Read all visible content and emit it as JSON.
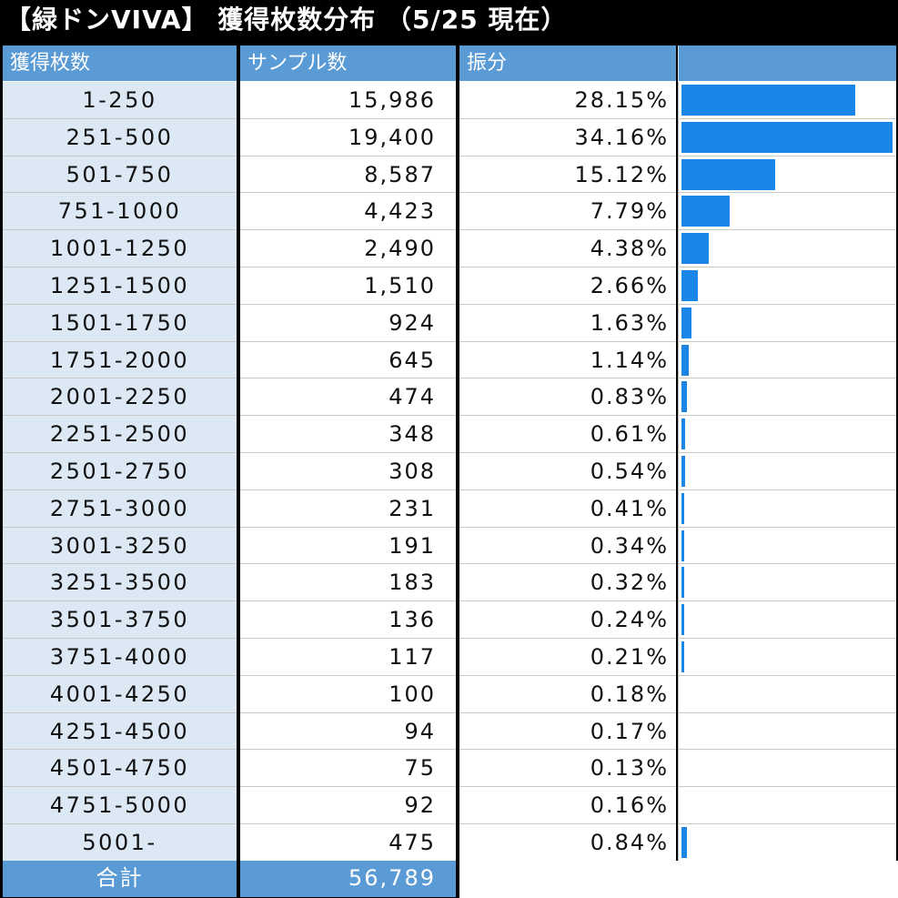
{
  "title": "【緑ドンVIVA】 獲得枚数分布 （5/25 現在）",
  "headers": {
    "range": "獲得枚数",
    "samples": "サンプル数",
    "ratio": "振分",
    "bar": ""
  },
  "rows": [
    {
      "range": "1-250",
      "samples": "15,986",
      "ratio": "28.15%",
      "pct": 28.15
    },
    {
      "range": "251-500",
      "samples": "19,400",
      "ratio": "34.16%",
      "pct": 34.16
    },
    {
      "range": "501-750",
      "samples": "8,587",
      "ratio": "15.12%",
      "pct": 15.12
    },
    {
      "range": "751-1000",
      "samples": "4,423",
      "ratio": "7.79%",
      "pct": 7.79
    },
    {
      "range": "1001-1250",
      "samples": "2,490",
      "ratio": "4.38%",
      "pct": 4.38
    },
    {
      "range": "1251-1500",
      "samples": "1,510",
      "ratio": "2.66%",
      "pct": 2.66
    },
    {
      "range": "1501-1750",
      "samples": "924",
      "ratio": "1.63%",
      "pct": 1.63
    },
    {
      "range": "1751-2000",
      "samples": "645",
      "ratio": "1.14%",
      "pct": 1.14
    },
    {
      "range": "2001-2250",
      "samples": "474",
      "ratio": "0.83%",
      "pct": 0.83
    },
    {
      "range": "2251-2500",
      "samples": "348",
      "ratio": "0.61%",
      "pct": 0.61
    },
    {
      "range": "2501-2750",
      "samples": "308",
      "ratio": "0.54%",
      "pct": 0.54
    },
    {
      "range": "2751-3000",
      "samples": "231",
      "ratio": "0.41%",
      "pct": 0.41
    },
    {
      "range": "3001-3250",
      "samples": "191",
      "ratio": "0.34%",
      "pct": 0.34
    },
    {
      "range": "3251-3500",
      "samples": "183",
      "ratio": "0.32%",
      "pct": 0.32
    },
    {
      "range": "3501-3750",
      "samples": "136",
      "ratio": "0.24%",
      "pct": 0.24
    },
    {
      "range": "3751-4000",
      "samples": "117",
      "ratio": "0.21%",
      "pct": 0.21
    },
    {
      "range": "4001-4250",
      "samples": "100",
      "ratio": "0.18%",
      "pct": 0.18
    },
    {
      "range": "4251-4500",
      "samples": "94",
      "ratio": "0.17%",
      "pct": 0.17
    },
    {
      "range": "4501-4750",
      "samples": "75",
      "ratio": "0.13%",
      "pct": 0.13
    },
    {
      "range": "4751-5000",
      "samples": "92",
      "ratio": "0.16%",
      "pct": 0.16
    },
    {
      "range": "5001-",
      "samples": "475",
      "ratio": "0.84%",
      "pct": 0.84
    }
  ],
  "footer": {
    "label": "合計",
    "total": "56,789"
  },
  "colors": {
    "header_bg": "#5b9bd5",
    "label_col_bg": "#dce9f5",
    "bar": "#1a86e8",
    "title_bg": "#000000"
  },
  "bar_scale_max_pct": 34.16
}
